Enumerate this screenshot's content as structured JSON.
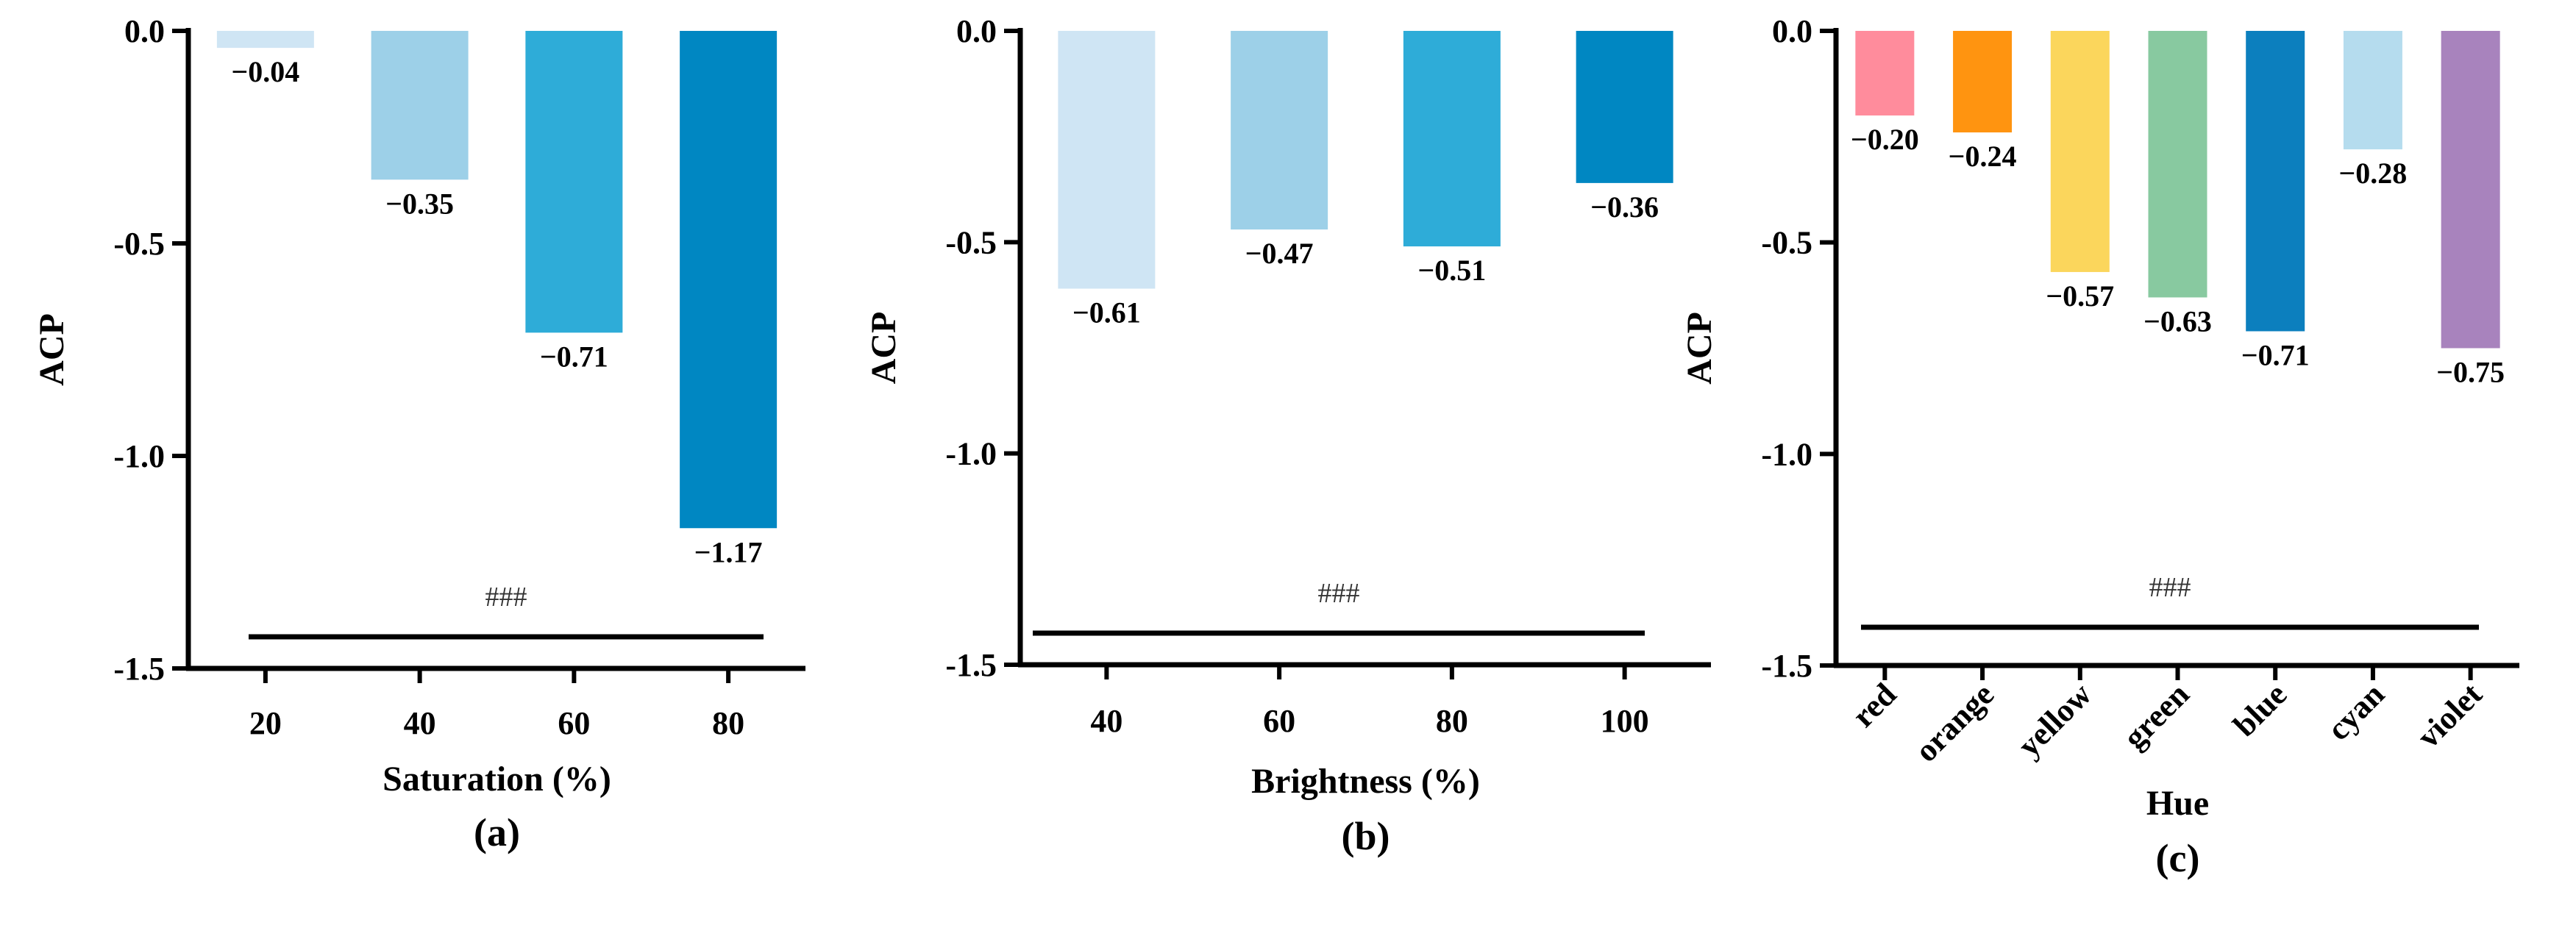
{
  "chart_data": [
    {
      "type": "bar",
      "panel_label": "(a)",
      "xlabel": "Saturation (%)",
      "ylabel": "ACP",
      "categories": [
        "20",
        "40",
        "60",
        "80"
      ],
      "values": [
        -0.04,
        -0.35,
        -0.71,
        -1.17
      ],
      "value_labels": [
        "−0.04",
        "−0.35",
        "−0.71",
        "−1.17"
      ],
      "colors": [
        "#cfe5f4",
        "#9dd0e8",
        "#2eacd8",
        "#0087c2"
      ],
      "ylim": [
        -1.5,
        0.0
      ],
      "yticks": [
        0.0,
        -0.5,
        -1.0,
        -1.5
      ],
      "ytick_labels": [
        "0.0",
        "-0.5",
        "-1.0",
        "-1.5"
      ],
      "significance": "###",
      "rotated_xticks": false
    },
    {
      "type": "bar",
      "panel_label": "(b)",
      "xlabel": "Brightness (%)",
      "ylabel": "ACP",
      "categories": [
        "40",
        "60",
        "80",
        "100"
      ],
      "values": [
        -0.61,
        -0.47,
        -0.51,
        -0.36
      ],
      "value_labels": [
        "−0.61",
        "−0.47",
        "−0.51",
        "−0.36"
      ],
      "colors": [
        "#cfe5f4",
        "#9dd0e8",
        "#2eacd8",
        "#0087c2"
      ],
      "ylim": [
        -1.5,
        0.0
      ],
      "yticks": [
        0.0,
        -0.5,
        -1.0,
        -1.5
      ],
      "ytick_labels": [
        "0.0",
        "-0.5",
        "-1.0",
        "-1.5"
      ],
      "significance": "###",
      "rotated_xticks": false
    },
    {
      "type": "bar",
      "panel_label": "(c)",
      "xlabel": "Hue",
      "ylabel": "ACP",
      "categories": [
        "red",
        "orange",
        "yellow",
        "green",
        "blue",
        "cyan",
        "violet"
      ],
      "values": [
        -0.2,
        -0.24,
        -0.57,
        -0.63,
        -0.71,
        -0.28,
        -0.75
      ],
      "value_labels": [
        "−0.20",
        "−0.24",
        "−0.57",
        "−0.63",
        "−0.71",
        "−0.28",
        "−0.75"
      ],
      "colors": [
        "#ff8c9c",
        "#ff9410",
        "#fbd65c",
        "#88c9a0",
        "#0c7fbe",
        "#b5dcee",
        "#a883bd"
      ],
      "ylim": [
        -1.5,
        0.0
      ],
      "yticks": [
        0.0,
        -0.5,
        -1.0,
        -1.5
      ],
      "ytick_labels": [
        "0.0",
        "-0.5",
        "-1.0",
        "-1.5"
      ],
      "significance": "###",
      "rotated_xticks": true
    }
  ]
}
